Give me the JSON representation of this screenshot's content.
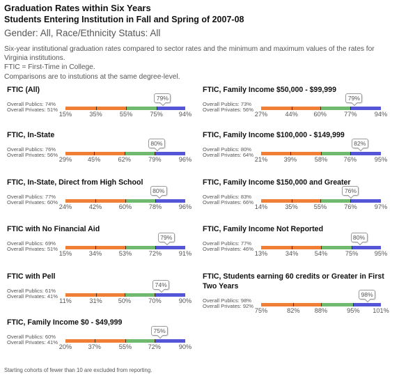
{
  "header": {
    "title": "Graduation Rates within Six Years",
    "subtitle": "Students Entering Institution in Fall and Spring of 2007-08",
    "filter": "Gender: All, Race/Ethnicity Status: All"
  },
  "description": [
    "Six-year institutional graduation rates compared to sector rates and the minimum and maximum values of the rates for Virginia institutions.",
    "FTIC = First-Time in College.",
    "Comparisons are to instutions at the same degree-level."
  ],
  "colors": {
    "low_band": "#f07f35",
    "mid_band": "#6fba6f",
    "high_band": "#5555d8"
  },
  "panels": [
    {
      "title": "FTIC (All)",
      "publics": "Overall Publics: 74%",
      "privates": "Overall Privates: 51%",
      "ticks": [
        "15%",
        "35%",
        "55%",
        "75%",
        "94%"
      ],
      "tick_values": [
        15,
        35,
        55,
        75,
        94
      ],
      "value": 79,
      "value_label": "79%"
    },
    {
      "title": "FTIC, In-State",
      "publics": "Overall Publics: 76%",
      "privates": "Overall Privates: 56%",
      "ticks": [
        "29%",
        "45%",
        "62%",
        "79%",
        "96%"
      ],
      "tick_values": [
        29,
        45,
        62,
        79,
        96
      ],
      "value": 80,
      "value_label": "80%"
    },
    {
      "title": "FTIC, In-State, Direct from High School",
      "publics": "Overall Publics: 77%",
      "privates": "Overall Privates: 60%",
      "ticks": [
        "24%",
        "42%",
        "60%",
        "78%",
        "96%"
      ],
      "tick_values": [
        24,
        42,
        60,
        78,
        96
      ],
      "value": 80,
      "value_label": "80%"
    },
    {
      "title": "FTIC with No Financial Aid",
      "publics": "Overall Publics: 69%",
      "privates": "Overall Privates: 51%",
      "ticks": [
        "15%",
        "34%",
        "53%",
        "72%",
        "91%"
      ],
      "tick_values": [
        15,
        34,
        53,
        72,
        91
      ],
      "value": 79,
      "value_label": "79%"
    },
    {
      "title": "FTIC with Pell",
      "publics": "Overall Publics: 61%",
      "privates": "Overall Privates: 41%",
      "ticks": [
        "11%",
        "31%",
        "50%",
        "70%",
        "90%"
      ],
      "tick_values": [
        11,
        31,
        50,
        70,
        90
      ],
      "value": 74,
      "value_label": "74%"
    },
    {
      "title": "FTIC, Family Income $0 - $49,999",
      "publics": "Overall Publics: 60%",
      "privates": "Overall Privates: 41%",
      "ticks": [
        "20%",
        "37%",
        "55%",
        "72%",
        "90%"
      ],
      "tick_values": [
        20,
        37,
        55,
        72,
        90
      ],
      "value": 75,
      "value_label": "75%"
    },
    {
      "title": "FTIC, Family Income $50,000 - $99,999",
      "publics": "Overall Publics: 73%",
      "privates": "Overall Privates: 56%",
      "ticks": [
        "27%",
        "44%",
        "60%",
        "77%",
        "94%"
      ],
      "tick_values": [
        27,
        44,
        60,
        77,
        94
      ],
      "value": 79,
      "value_label": "79%"
    },
    {
      "title": "FTIC, Family Income $100,000 - $149,999",
      "publics": "Overall Publics: 80%",
      "privates": "Overall Privates: 64%",
      "ticks": [
        "21%",
        "39%",
        "58%",
        "76%",
        "95%"
      ],
      "tick_values": [
        21,
        39,
        58,
        76,
        95
      ],
      "value": 82,
      "value_label": "82%"
    },
    {
      "title": "FTIC, Family Income $150,000 and Greater",
      "publics": "Overall Publics: 83%",
      "privates": "Overall Privates: 66%",
      "ticks": [
        "14%",
        "35%",
        "55%",
        "76%",
        "97%"
      ],
      "tick_values": [
        14,
        35,
        55,
        76,
        97
      ],
      "value": 76,
      "value_label": "76%"
    },
    {
      "title": "FTIC, Family Income Not Reported",
      "publics": "Overall Publics: 77%",
      "privates": "Overall Privates: 46%",
      "ticks": [
        "13%",
        "34%",
        "54%",
        "75%",
        "95%"
      ],
      "tick_values": [
        13,
        34,
        54,
        75,
        95
      ],
      "value": 80,
      "value_label": "80%"
    },
    {
      "title": "FTIC, Students earning 60 credits or Greater in First Two Years",
      "publics": "Overall Publics: 98%",
      "privates": "Overall Privates: 92%",
      "ticks": [
        "75%",
        "82%",
        "88%",
        "95%",
        "101%"
      ],
      "tick_values": [
        75,
        82,
        88,
        95,
        101
      ],
      "value": 98,
      "value_label": "98%"
    }
  ],
  "footer": "Starting cohorts of fewer than 10 are excluded from reporting."
}
